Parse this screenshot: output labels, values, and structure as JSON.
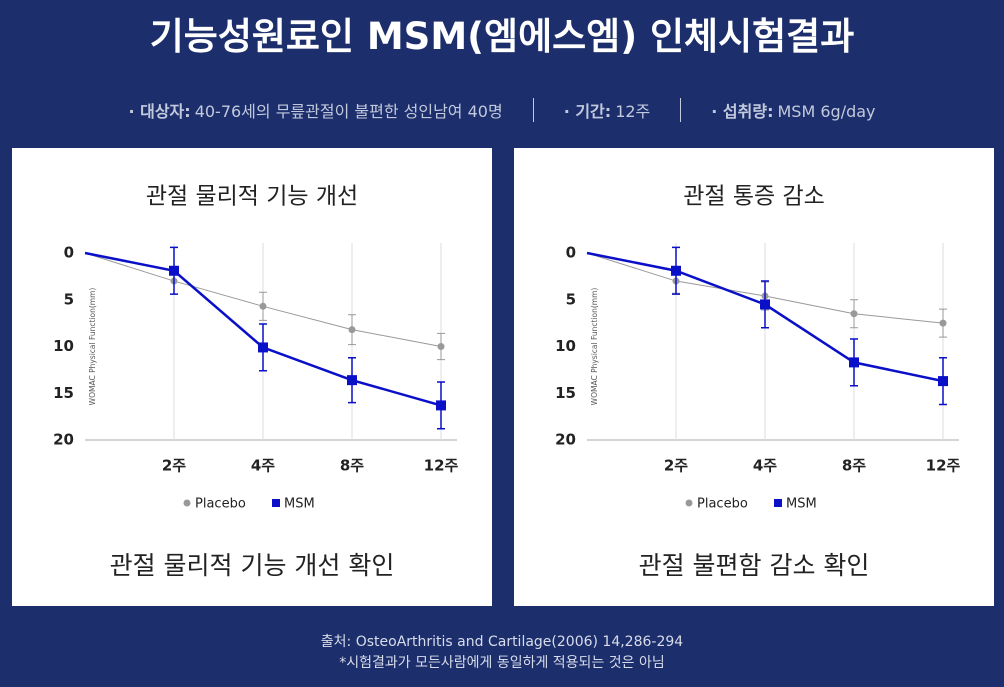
{
  "title": "기능성원료인 MSM(엠에스엠) 인체시험결과",
  "info": [
    {
      "label": "· 대상자:",
      "text": "40-76세의 무릎관절이 불편한 성인남여 40명"
    },
    {
      "label": "· 기간:",
      "text": "12주"
    },
    {
      "label": "· 섭취량:",
      "text": "MSM 6g/day"
    }
  ],
  "chart_data": [
    {
      "type": "line",
      "title": "관절 물리적 기능 개선",
      "caption": "관절 물리적 기능 개선 확인",
      "y_label": "WOMAC Physical Function(mm)",
      "categories": [
        null,
        "2주",
        "4주",
        "8주",
        "12주"
      ],
      "ylim": [
        0,
        20
      ],
      "y_inverted": true,
      "yticks": [
        0,
        5,
        10,
        15,
        20
      ],
      "xgrid": true,
      "series": [
        {
          "name": "Placebo",
          "color": "#999999",
          "marker": "circle",
          "values": [
            0,
            3,
            5.7,
            8.2,
            10
          ],
          "errors": [
            null,
            1.4,
            1.5,
            1.6,
            1.4
          ]
        },
        {
          "name": "MSM",
          "color": "#0a0fc8",
          "marker": "square",
          "values": [
            0,
            1.9,
            10.1,
            13.6,
            16.3
          ],
          "errors": [
            null,
            2.5,
            2.5,
            2.4,
            2.5
          ]
        }
      ]
    },
    {
      "type": "line",
      "title": "관절 통증 감소",
      "caption": "관절 불편함 감소 확인",
      "y_label": "WOMAC Physical Function(mm)",
      "categories": [
        null,
        "2주",
        "4주",
        "8주",
        "12주"
      ],
      "ylim": [
        0,
        20
      ],
      "y_inverted": true,
      "yticks": [
        0,
        5,
        10,
        15,
        20
      ],
      "xgrid": true,
      "series": [
        {
          "name": "Placebo",
          "color": "#999999",
          "marker": "circle",
          "values": [
            0,
            3,
            4.6,
            6.5,
            7.5
          ],
          "errors": [
            null,
            1.3,
            1.5,
            1.5,
            1.5
          ]
        },
        {
          "name": "MSM",
          "color": "#0a0fc8",
          "marker": "square",
          "values": [
            0,
            1.9,
            5.5,
            11.7,
            13.7
          ],
          "errors": [
            null,
            2.5,
            2.5,
            2.5,
            2.5
          ]
        }
      ]
    }
  ],
  "footer": {
    "source": "출처: OsteoArthritis and Cartilage(2006) 14,286-294",
    "note": "*시험결과가 모든사람에게 동일하게 적용되는 것은 아님"
  }
}
